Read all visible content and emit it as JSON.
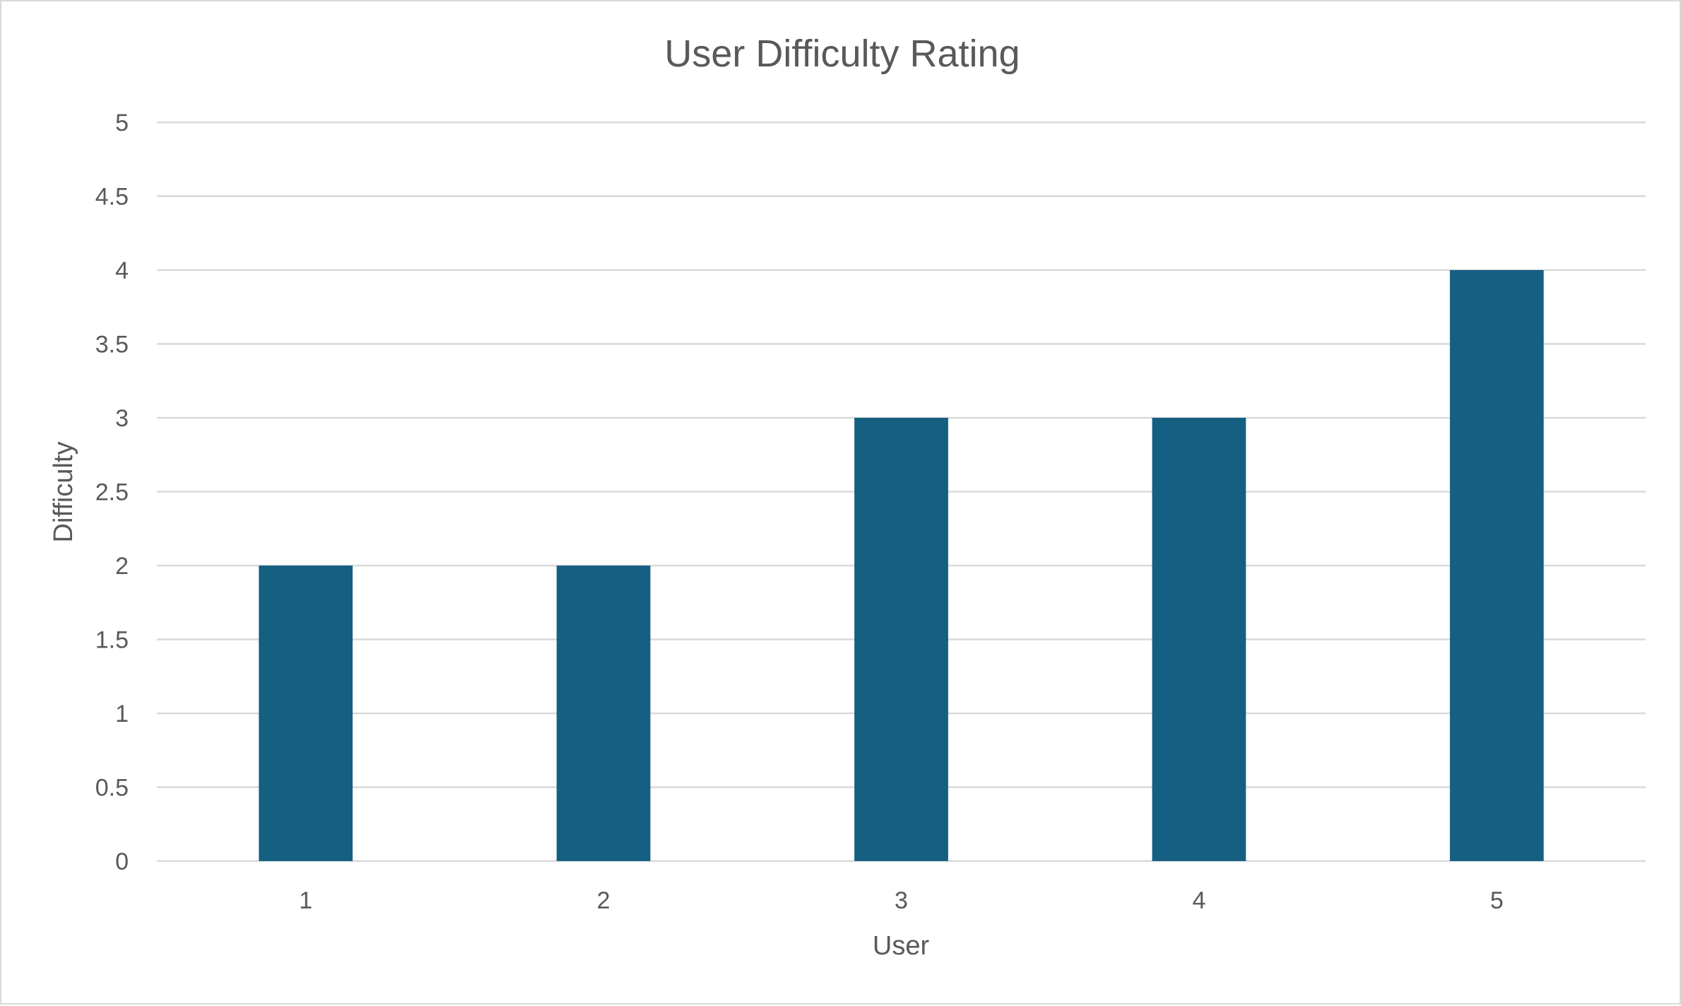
{
  "chart_data": {
    "type": "bar",
    "title": "User Difficulty Rating",
    "xlabel": "User",
    "ylabel": "Difficulty",
    "categories": [
      "1",
      "2",
      "3",
      "4",
      "5"
    ],
    "values": [
      2,
      2,
      3,
      3,
      4
    ],
    "ylim": [
      0,
      5
    ],
    "ytick_step": 0.5,
    "yticks": [
      "0",
      "0.5",
      "1",
      "1.5",
      "2",
      "2.5",
      "3",
      "3.5",
      "4",
      "4.5",
      "5"
    ],
    "grid": true,
    "legend": "none",
    "bar_color": "#156082"
  }
}
